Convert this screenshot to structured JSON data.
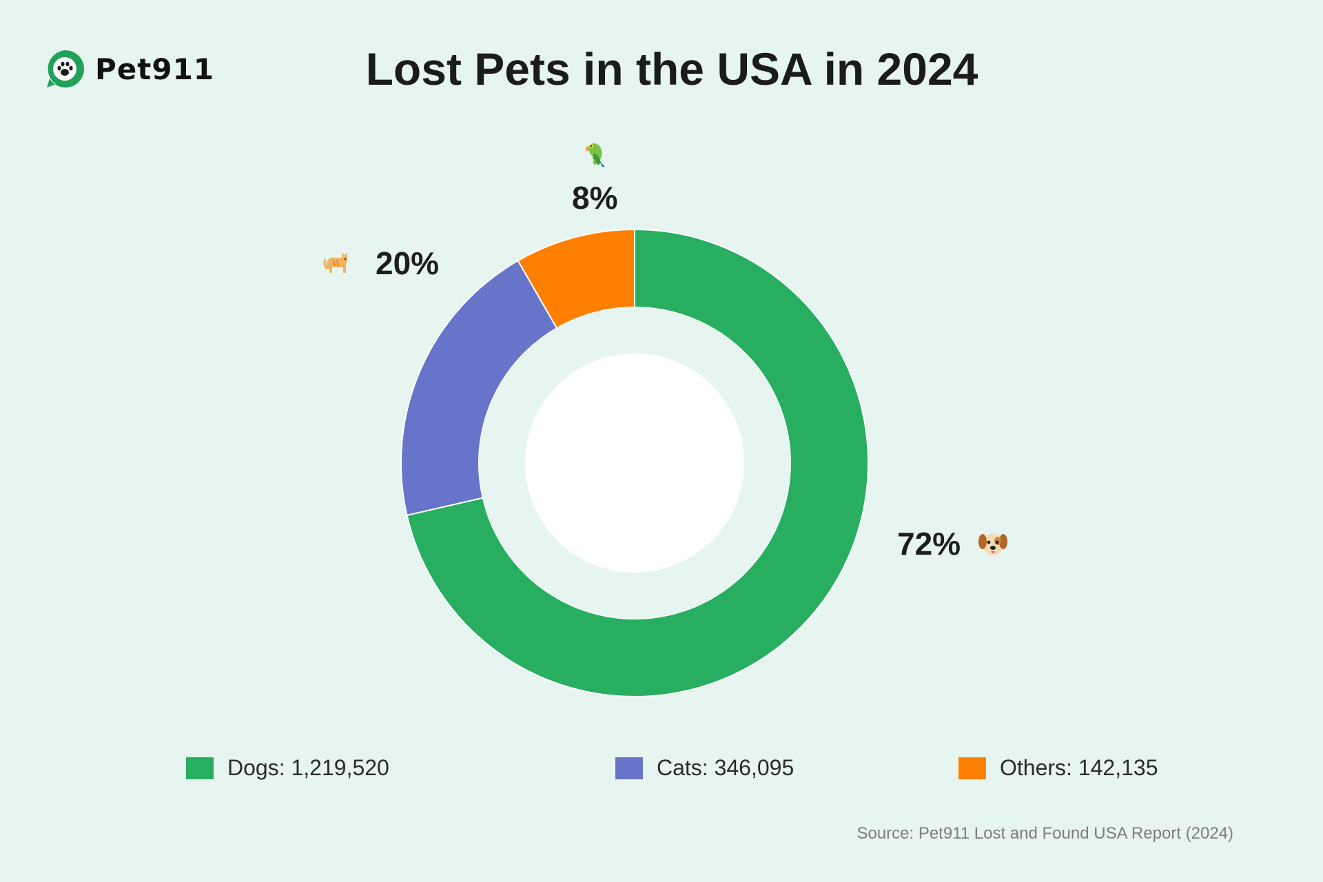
{
  "brand": {
    "name": "Pet911"
  },
  "colors": {
    "background": "#e6f5ef",
    "dogs": "#27ae60",
    "cats": "#6675c9",
    "others": "#ff7f00",
    "brand_green": "#21a15a"
  },
  "chart_data": {
    "type": "pie",
    "title": "Lost Pets in the USA in 2024",
    "categories": [
      "Dogs",
      "Cats",
      "Others"
    ],
    "values": [
      1219520,
      346095,
      142135
    ],
    "percent_labels": [
      "72%",
      "20%",
      "8%"
    ],
    "series_colors": [
      "#27ae60",
      "#6675c9",
      "#ff7f00"
    ],
    "legend": [
      {
        "label": "Dogs: 1,219,520",
        "color": "#27ae60"
      },
      {
        "label": "Cats: 346,095",
        "color": "#6675c9"
      },
      {
        "label": "Others: 142,135",
        "color": "#ff7f00"
      }
    ],
    "legend_position": "bottom",
    "slice_icons": [
      "dog-face-icon",
      "cat-icon",
      "parrot-icon"
    ],
    "source": "Source: Pet911 Lost and Found USA Report (2024)"
  }
}
